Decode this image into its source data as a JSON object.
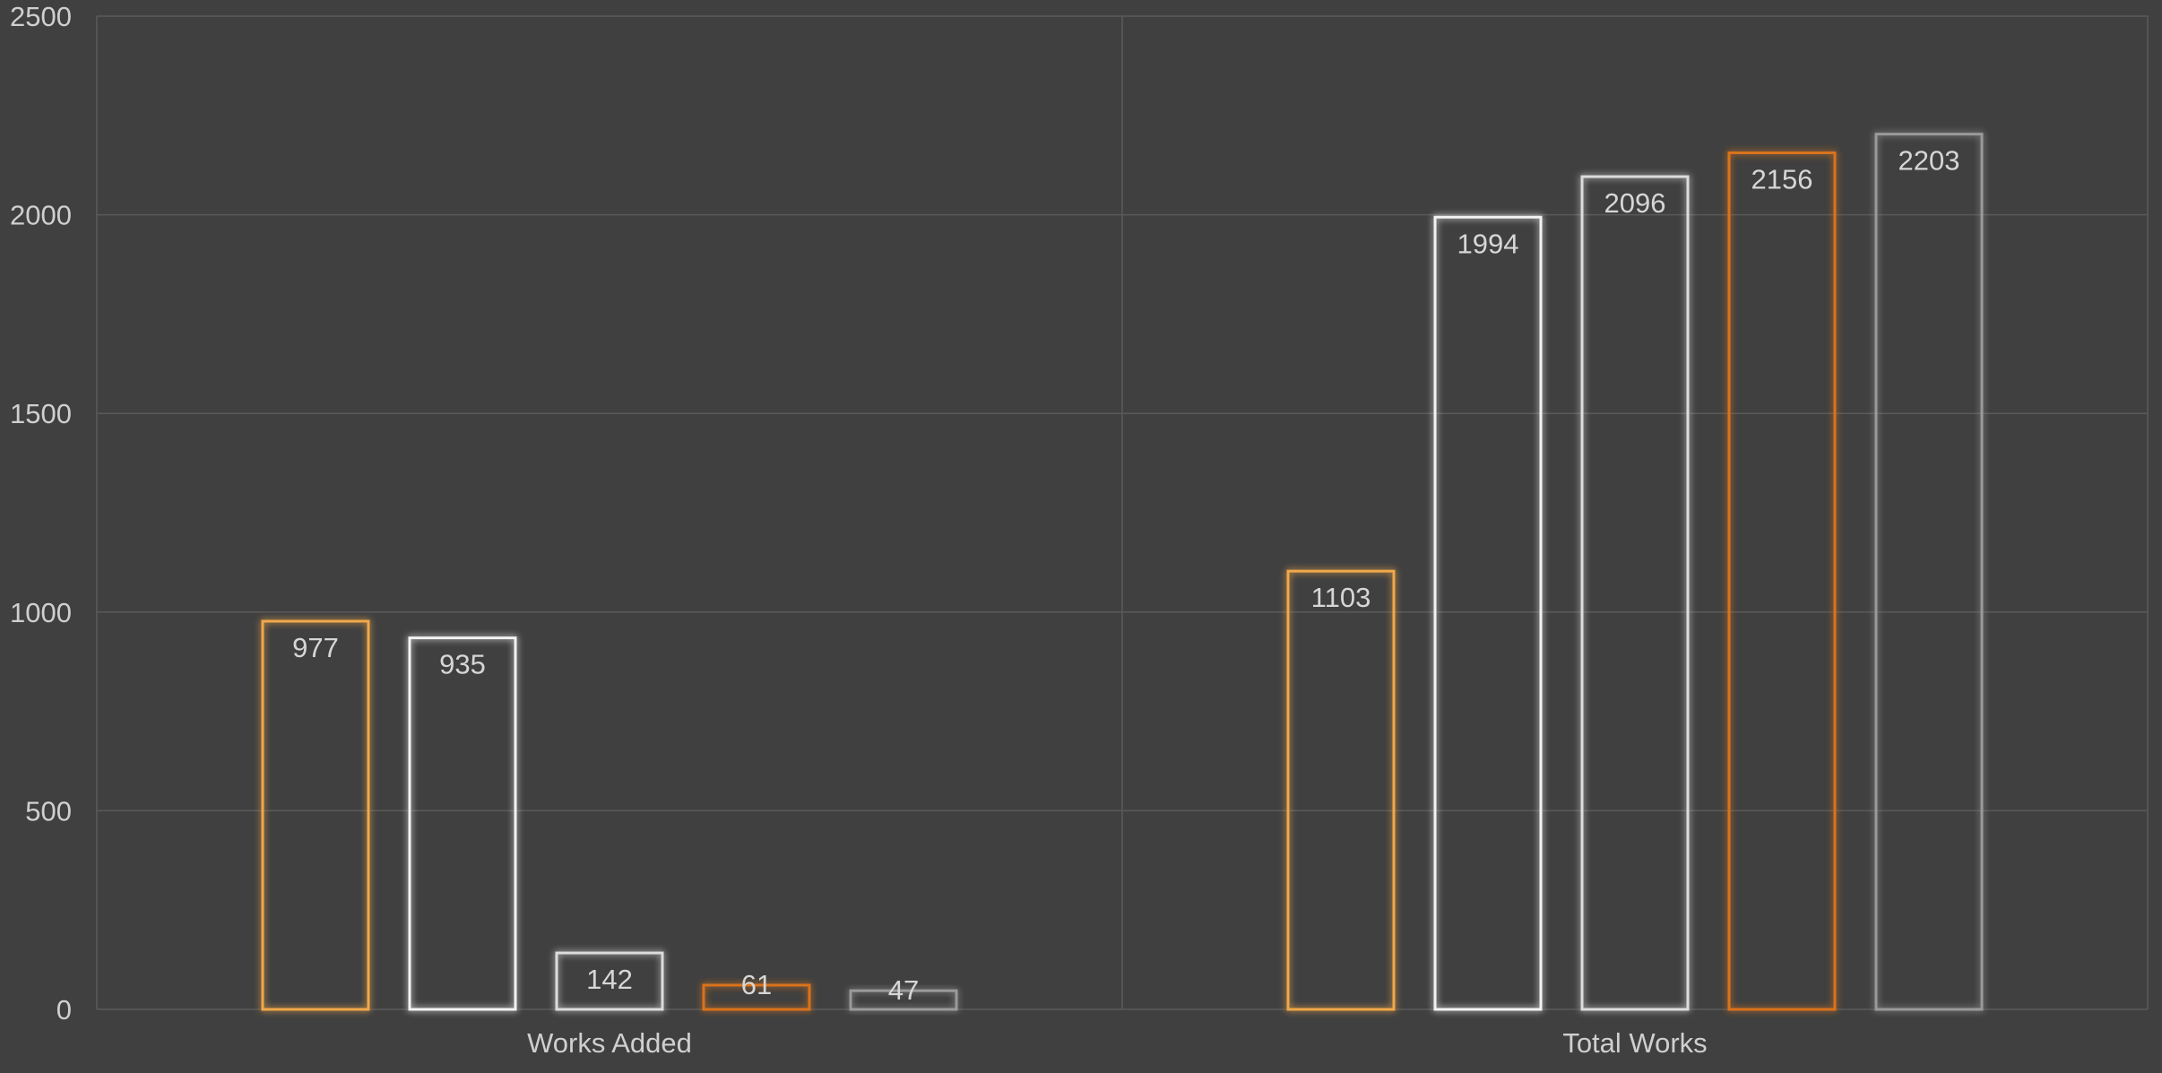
{
  "chart_data": {
    "type": "bar",
    "categories": [
      "Works Added",
      "Total Works"
    ],
    "series": [
      {
        "values": [
          977,
          1103
        ],
        "color": "#f0a84a"
      },
      {
        "values": [
          935,
          1994
        ],
        "color": "#f2f2f2"
      },
      {
        "values": [
          142,
          2096
        ],
        "color": "#dcdcdc"
      },
      {
        "values": [
          61,
          2156
        ],
        "color": "#d9731c"
      },
      {
        "values": [
          47,
          2203
        ],
        "color": "#9a9a9a"
      }
    ],
    "ylim": [
      0,
      2500
    ],
    "yticks": [
      0,
      500,
      1000,
      1500,
      2000,
      2500
    ],
    "grid": true,
    "title": "",
    "xlabel": "",
    "ylabel": ""
  }
}
